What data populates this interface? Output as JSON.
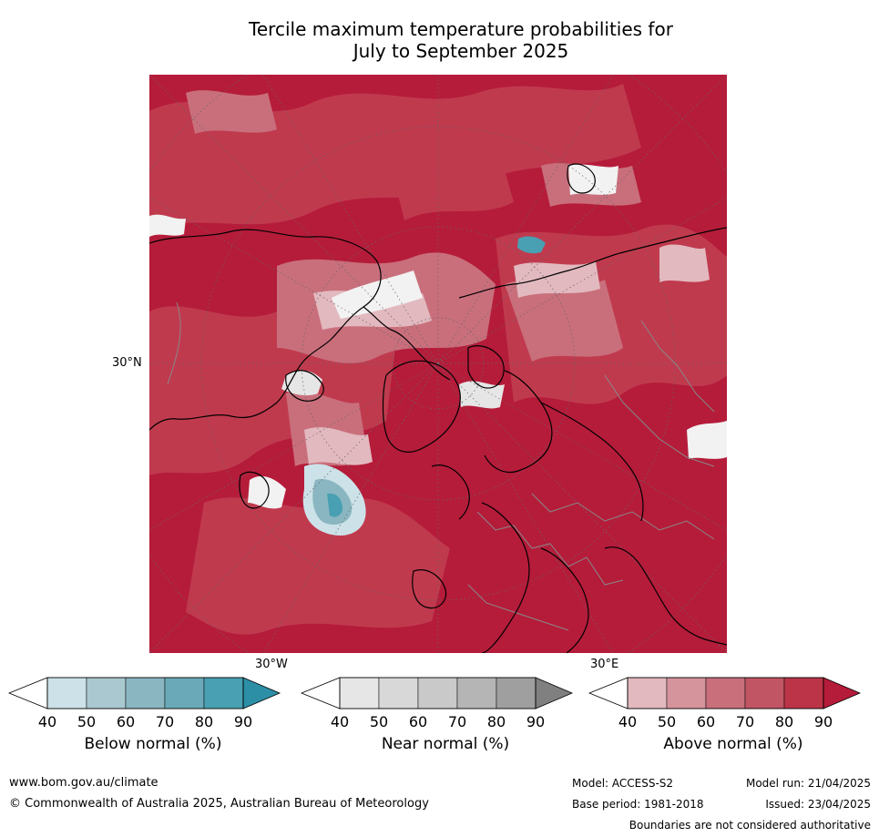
{
  "title": {
    "line1": "Tercile maximum temperature probabilities for",
    "line2": "July to September 2025"
  },
  "map": {
    "projection": "north-polar-stereographic",
    "labels": {
      "lat_30n": "30°N",
      "lon_30w": "30°W",
      "lon_30e": "30°E"
    }
  },
  "colorbars": [
    {
      "label": "Below normal (%)",
      "ticks": [
        "40",
        "50",
        "60",
        "70",
        "80",
        "90"
      ],
      "colors": [
        "#ffffff",
        "#cce2e8",
        "#a9c8cf",
        "#8ab6c1",
        "#6aaab8",
        "#48a0b2",
        "#2c8fa6"
      ]
    },
    {
      "label": "Near normal (%)",
      "ticks": [
        "40",
        "50",
        "60",
        "70",
        "80",
        "90"
      ],
      "colors": [
        "#ffffff",
        "#e6e6e6",
        "#d8d8d8",
        "#c9c9c9",
        "#b5b5b5",
        "#9f9f9f",
        "#808080"
      ]
    },
    {
      "label": "Above normal (%)",
      "ticks": [
        "40",
        "50",
        "60",
        "70",
        "80",
        "90"
      ],
      "colors": [
        "#ffffff",
        "#e2b9bf",
        "#d5939c",
        "#c96f7c",
        "#c15564",
        "#bb3448",
        "#b51c3a"
      ]
    }
  ],
  "footer": {
    "website": "www.bom.gov.au/climate",
    "copyright": "© Commonwealth of Australia 2025, Australian Bureau of Meteorology",
    "model": "Model: ACCESS-S2",
    "base_period": "Base period: 1981-2018",
    "model_run": "Model run: 21/04/2025",
    "issued": "Issued: 23/04/2025",
    "disclaimer": "Boundaries are not considered authoritative"
  }
}
